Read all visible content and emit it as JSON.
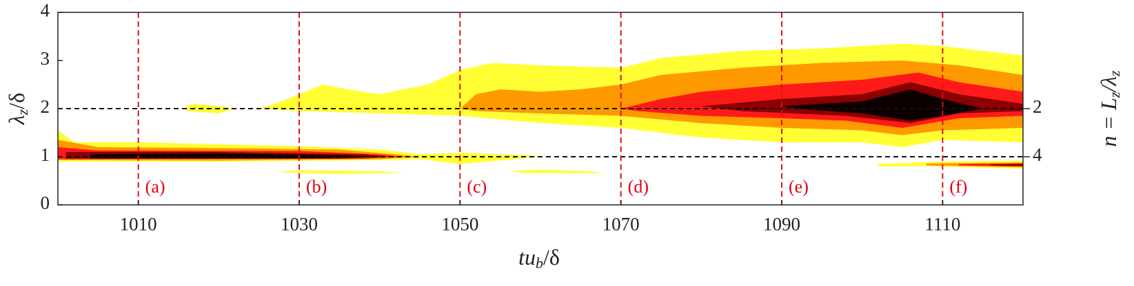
{
  "chart_data": {
    "type": "contour",
    "xlabel": {
      "main": "tu",
      "sub": "b",
      "rest": "/δ"
    },
    "ylabel": {
      "main": "λ",
      "sub": "z",
      "rest": "/δ"
    },
    "y2label": {
      "main": "n = L",
      "sub": "z",
      "mid": "/λ",
      "sub2": "z"
    },
    "xlim": [
      1000,
      1120
    ],
    "ylim": [
      0,
      4
    ],
    "xticks": [
      1010,
      1030,
      1050,
      1070,
      1090,
      1110
    ],
    "yticks": [
      0,
      1,
      2,
      3,
      4
    ],
    "y2ticks": [
      2,
      {
        "value": 1,
        "label": "4"
      }
    ],
    "hlines": [
      1,
      2
    ],
    "hline_color": "#111111",
    "vline_color": "#e01010",
    "annotations": [
      {
        "x": 1010,
        "text": "(a)"
      },
      {
        "x": 1030,
        "text": "(b)"
      },
      {
        "x": 1050,
        "text": "(c)"
      },
      {
        "x": 1070,
        "text": "(d)"
      },
      {
        "x": 1090,
        "text": "(e)"
      },
      {
        "x": 1110,
        "text": "(f)"
      }
    ],
    "regions": [
      {
        "color": "#ffff33",
        "x": [
          1000,
          1002,
          1010,
          1030,
          1040,
          1045,
          1050,
          1055,
          1060,
          1058,
          1050,
          1045,
          1040,
          1020,
          1000
        ],
        "y": [
          1.55,
          1.3,
          1.3,
          1.22,
          1.15,
          1.05,
          1.08,
          1.05,
          1.02,
          0.97,
          0.85,
          0.95,
          0.93,
          0.9,
          0.9
        ]
      },
      {
        "color": "#ff9900",
        "x": [
          1000,
          1005,
          1020,
          1035,
          1042,
          1045,
          1040,
          1020,
          1000
        ],
        "y": [
          1.35,
          1.2,
          1.18,
          1.15,
          1.05,
          1.0,
          0.95,
          0.92,
          0.93
        ]
      },
      {
        "color": "#ff1a1a",
        "x": [
          1000,
          1005,
          1030,
          1040,
          1043,
          1038,
          1000
        ],
        "y": [
          1.2,
          1.13,
          1.12,
          1.05,
          1.0,
          0.96,
          0.95
        ]
      },
      {
        "color": "#8b0000",
        "x": [
          1001,
          1020,
          1038,
          1041,
          1035,
          1001
        ],
        "y": [
          1.1,
          1.1,
          1.05,
          1.0,
          0.96,
          0.96
        ]
      },
      {
        "color": "#0d0000",
        "x": [
          1004,
          1020,
          1035,
          1040,
          1030,
          1004
        ],
        "y": [
          1.05,
          1.07,
          1.03,
          1.0,
          0.97,
          0.97
        ]
      },
      {
        "color": "#ffff33",
        "x": [
          1027,
          1030,
          1040,
          1043,
          1035
        ],
        "y": [
          0.68,
          0.72,
          0.7,
          0.67,
          0.64
        ]
      },
      {
        "color": "#ffff33",
        "x": [
          1056,
          1060,
          1066,
          1068,
          1058
        ],
        "y": [
          0.7,
          0.73,
          0.7,
          0.66,
          0.66
        ]
      },
      {
        "color": "#ffff33",
        "x": [
          1016,
          1017,
          1020,
          1022,
          1020,
          1016
        ],
        "y": [
          2.05,
          2.1,
          2.05,
          2.0,
          1.9,
          1.95
        ]
      },
      {
        "color": "#ffff33",
        "x": [
          1025,
          1027,
          1030,
          1033,
          1036,
          1040,
          1046,
          1050,
          1054,
          1060,
          1070,
          1075,
          1085,
          1095,
          1105,
          1110,
          1115,
          1120,
          1120,
          1110,
          1105,
          1100,
          1090,
          1080,
          1070,
          1060,
          1050,
          1040,
          1030
        ],
        "y": [
          2.0,
          2.1,
          2.3,
          2.5,
          2.4,
          2.3,
          2.5,
          2.8,
          2.95,
          2.9,
          2.85,
          3.05,
          3.2,
          3.25,
          3.35,
          3.3,
          3.2,
          3.1,
          1.3,
          1.35,
          1.2,
          1.3,
          1.3,
          1.4,
          1.6,
          1.7,
          1.85,
          1.9,
          1.95
        ]
      },
      {
        "color": "#ff9900",
        "x": [
          1050,
          1052,
          1055,
          1060,
          1065,
          1070,
          1075,
          1085,
          1095,
          1105,
          1112,
          1120,
          1120,
          1110,
          1105,
          1100,
          1090,
          1080,
          1070,
          1060,
          1052
        ],
        "y": [
          2.0,
          2.3,
          2.4,
          2.35,
          2.4,
          2.5,
          2.7,
          2.85,
          2.95,
          3.0,
          2.9,
          2.7,
          1.6,
          1.55,
          1.45,
          1.55,
          1.6,
          1.7,
          1.85,
          1.9,
          1.95
        ]
      },
      {
        "color": "#ff1a1a",
        "x": [
          1070,
          1075,
          1080,
          1090,
          1100,
          1107,
          1112,
          1120,
          1120,
          1112,
          1105,
          1098,
          1090,
          1080,
          1072
        ],
        "y": [
          2.0,
          2.2,
          2.35,
          2.5,
          2.6,
          2.75,
          2.55,
          2.35,
          1.85,
          1.8,
          1.6,
          1.75,
          1.8,
          1.85,
          1.95
        ]
      },
      {
        "color": "#8b0000",
        "x": [
          1080,
          1090,
          1100,
          1106,
          1112,
          1120,
          1120,
          1112,
          1106,
          1098,
          1085
        ],
        "y": [
          2.05,
          2.2,
          2.3,
          2.55,
          2.3,
          2.1,
          1.95,
          1.9,
          1.7,
          1.85,
          1.95
        ]
      },
      {
        "color": "#0d0000",
        "x": [
          1090,
          1100,
          1106,
          1110,
          1115,
          1110,
          1106,
          1100,
          1092
        ],
        "y": [
          2.05,
          2.15,
          2.4,
          2.2,
          2.0,
          1.85,
          1.75,
          1.9,
          2.0
        ]
      },
      {
        "color": "#ffff33",
        "x": [
          1102,
          1110,
          1120,
          1120,
          1110,
          1102
        ],
        "y": [
          0.85,
          0.9,
          0.92,
          0.75,
          0.8,
          0.8
        ]
      },
      {
        "color": "#ff9900",
        "x": [
          1108,
          1120,
          1120,
          1108
        ],
        "y": [
          0.86,
          0.88,
          0.78,
          0.82
        ]
      },
      {
        "color": "#ff1a1a",
        "x": [
          1112,
          1120,
          1120,
          1112
        ],
        "y": [
          0.85,
          0.86,
          0.8,
          0.82
        ]
      },
      {
        "color": "#8b0000",
        "x": [
          1116,
          1120,
          1120,
          1116
        ],
        "y": [
          0.84,
          0.85,
          0.81,
          0.82
        ]
      }
    ]
  }
}
